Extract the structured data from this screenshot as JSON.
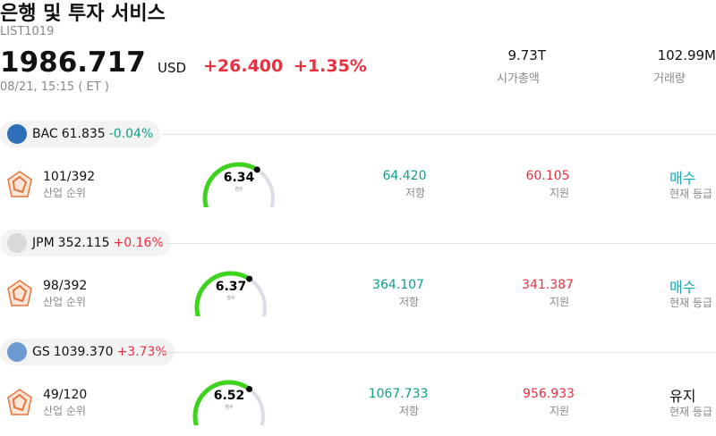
{
  "header": {
    "title": "은행 및 투자 서비스",
    "code": "LIST1019",
    "price": "1986.717",
    "currency": "USD",
    "change": "+26.400",
    "change_pct": "+1.35%",
    "time": "08/21, 15:15 ( ET )",
    "stats": [
      {
        "value": "9.73T",
        "label": "시가총액"
      },
      {
        "value": "102.99M",
        "label": "거래량"
      }
    ]
  },
  "stocks": [
    {
      "ticker": "BAC",
      "price": "61.835",
      "change": "-0.04%",
      "change_color": "#0e9f8a",
      "logo_color": "#2e6fb8",
      "rank": "101/392",
      "rank_label": "산업 순위",
      "score": 6.34,
      "score_label": "점수",
      "resistance": "64.420",
      "resistance_label": "저항",
      "support": "60.105",
      "support_label": "지원",
      "rating": "매수",
      "rating_color": "#16a9b5",
      "rating_label": "현재 등급"
    },
    {
      "ticker": "JPM",
      "price": "352.115",
      "change": "+0.16%",
      "change_color": "#e8303f",
      "logo_color": "#d9d9d9",
      "rank": "98/392",
      "rank_label": "산업 순위",
      "score": 6.37,
      "score_label": "점수",
      "resistance": "364.107",
      "resistance_label": "저항",
      "support": "341.387",
      "support_label": "지원",
      "rating": "매수",
      "rating_color": "#16a9b5",
      "rating_label": "현재 등급"
    },
    {
      "ticker": "GS",
      "price": "1039.370",
      "change": "+3.73%",
      "change_color": "#e8303f",
      "logo_color": "#6d9bd1",
      "rank": "49/120",
      "rank_label": "산업 순위",
      "score": 6.52,
      "score_label": "점수",
      "resistance": "1067.733",
      "resistance_label": "저항",
      "support": "956.933",
      "support_label": "지원",
      "rating": "유지",
      "rating_color": "#111111",
      "rating_label": "현재 등급"
    }
  ]
}
